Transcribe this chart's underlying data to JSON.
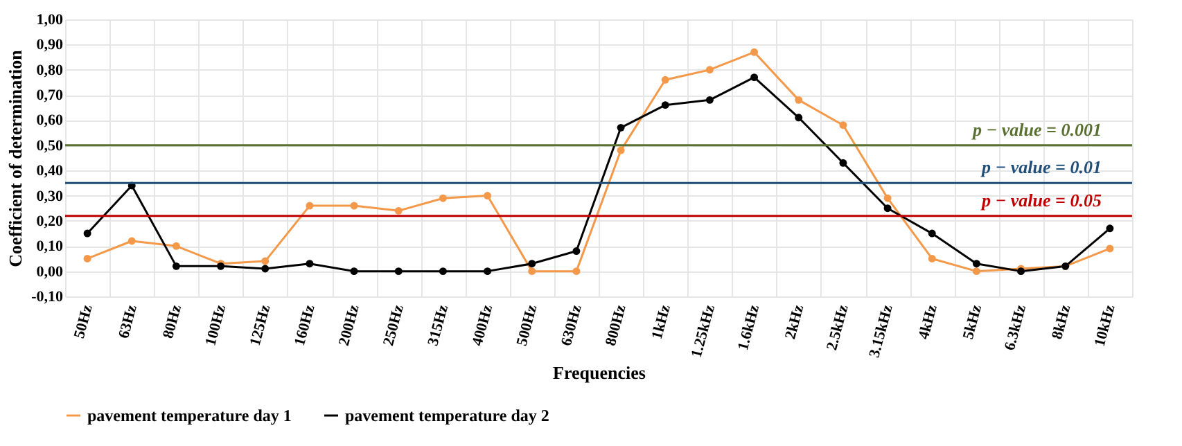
{
  "chart_data": {
    "type": "line",
    "xlabel": "Frequencies",
    "ylabel": "Coefficient of determination",
    "categories": [
      "50Hz",
      "63Hz",
      "80Hz",
      "100Hz",
      "125Hz",
      "160Hz",
      "200Hz",
      "250Hz",
      "315Hz",
      "400Hz",
      "500Hz",
      "630Hz",
      "800Hz",
      "1kHz",
      "1.25kHz",
      "1.6kHz",
      "2kHz",
      "2.5kHz",
      "3.15kHz",
      "4kHz",
      "5kHz",
      "6.3kHz",
      "8kHz",
      "10kHz"
    ],
    "series": [
      {
        "name": "pavement temperature day 1",
        "color": "#f4994a",
        "values": [
          0.05,
          0.12,
          0.1,
          0.03,
          0.04,
          0.26,
          0.26,
          0.24,
          0.29,
          0.3,
          0.0,
          0.0,
          0.48,
          0.76,
          0.8,
          0.87,
          0.68,
          0.58,
          0.29,
          0.05,
          0.0,
          0.01,
          0.02,
          0.09
        ]
      },
      {
        "name": "pavement temperature day 2",
        "color": "#000000",
        "values": [
          0.15,
          0.34,
          0.02,
          0.02,
          0.01,
          0.03,
          0.0,
          0.0,
          0.0,
          0.0,
          0.03,
          0.08,
          0.57,
          0.66,
          0.68,
          0.77,
          0.61,
          0.43,
          0.25,
          0.15,
          0.03,
          0.0,
          0.02,
          0.17
        ]
      }
    ],
    "ylim": [
      -0.1,
      1.0
    ],
    "yticks": [
      {
        "value": -0.1,
        "label": "-0,10"
      },
      {
        "value": 0,
        "label": "0,00"
      },
      {
        "value": 0.1,
        "label": "0,10"
      },
      {
        "value": 0.2,
        "label": "0,20"
      },
      {
        "value": 0.3,
        "label": "0,30"
      },
      {
        "value": 0.4,
        "label": "0,40"
      },
      {
        "value": 0.5,
        "label": "0,50"
      },
      {
        "value": 0.6,
        "label": "0,60"
      },
      {
        "value": 0.7,
        "label": "0,70"
      },
      {
        "value": 0.8,
        "label": "0,80"
      },
      {
        "value": 0.9,
        "label": "0,90"
      },
      {
        "value": 1.0,
        "label": "1,00"
      }
    ],
    "ref_lines": [
      {
        "axis": "y",
        "value": 0.5,
        "color": "#5a7030"
      },
      {
        "axis": "y",
        "value": 0.35,
        "color": "#1f4e79"
      },
      {
        "axis": "y",
        "value": 0.22,
        "color": "#c00000"
      }
    ],
    "annotations": [
      {
        "text": "p − value = 0.001",
        "x": "10kHz",
        "y": 0.5
      },
      {
        "text": "p − value = 0.01",
        "x": "10kHz",
        "y": 0.35
      },
      {
        "text": "p − value = 0.05",
        "x": "10kHz",
        "y": 0.22
      }
    ],
    "grid": true,
    "legend": "bottom",
    "marker": "circle",
    "line_style": "solid"
  }
}
